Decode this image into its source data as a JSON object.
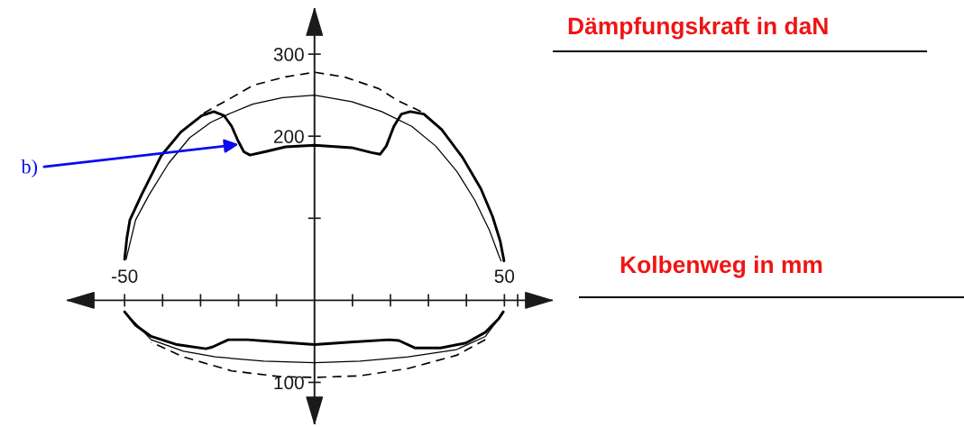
{
  "chart_data": {
    "type": "line",
    "xlabel": "Kolbenweg in mm",
    "ylabel": "Dämpfungskraft in daN",
    "xlim": [
      -65,
      62.5
    ],
    "ylim": [
      -150,
      355
    ],
    "xticks": [
      {
        "value": -50,
        "label": "-50"
      },
      {
        "value": -40,
        "label": null
      },
      {
        "value": -30,
        "label": null
      },
      {
        "value": -20,
        "label": null
      },
      {
        "value": -10,
        "label": null
      },
      {
        "value": 10,
        "label": null
      },
      {
        "value": 20,
        "label": null
      },
      {
        "value": 30,
        "label": null
      },
      {
        "value": 40,
        "label": null
      },
      50,
      {
        "value": 53.5,
        "label": null
      }
    ],
    "yticks": [
      {
        "value": -100,
        "label": "100"
      },
      {
        "value": 100,
        "label": null
      },
      200,
      300
    ],
    "series": [
      {
        "color": "#000000",
        "line_style": "dashed",
        "x": [
          -29.2,
          -21.8,
          -16.2,
          -8,
          0,
          8,
          16.9,
          21.7,
          28
        ],
        "values": [
          228,
          247,
          262,
          272,
          278,
          272,
          258,
          244,
          230
        ]
      },
      {
        "color": "#000000",
        "line_style": "solid",
        "x": [
          -49.6,
          -47.1,
          -43.5,
          -38.4,
          -32.9,
          -27.3,
          -22.6,
          -16.3,
          -8.4,
          0,
          9.8,
          17.7,
          25.6,
          31.9,
          37.5,
          42.2,
          46.1,
          48.5,
          49.1
        ],
        "values": [
          50,
          98,
          129,
          167,
          198,
          217,
          227,
          239,
          247,
          250,
          242,
          230,
          212,
          188,
          157,
          122,
          85,
          55,
          48
        ]
      },
      {
        "color": "#000000",
        "line_style": "solid",
        "x": [
          -50,
          -49.4,
          -48.6,
          -45.5,
          -40.4,
          -35.2,
          -29.7,
          -26.5,
          -23.8,
          -21.8,
          -20.2,
          -18.6,
          -17,
          -13.1,
          -7.6,
          0,
          9.8,
          15,
          17.3,
          18.9,
          20.9,
          22.9,
          25.2,
          28.8,
          33.5,
          39,
          43.8,
          46.9,
          48.9,
          49.9
        ],
        "values": [
          50,
          76,
          98,
          129,
          176,
          205,
          225,
          230,
          225,
          212,
          195,
          181,
          177,
          181,
          187,
          189,
          186,
          180,
          178,
          188,
          212,
          227,
          230,
          227,
          208,
          174,
          136,
          102,
          72,
          48
        ]
      },
      {
        "color": "#000000",
        "line_style": "dashed",
        "x": [
          45,
          37.4,
          24.7,
          12,
          0,
          -9.1,
          -21.8,
          -34.5,
          -43
        ],
        "values": [
          -48,
          -67,
          -83,
          -92,
          -94,
          -93,
          -86,
          -69,
          -51
        ]
      },
      {
        "color": "#000000",
        "line_style": "solid",
        "x": [
          49.7,
          45,
          37.4,
          24.7,
          12,
          0,
          -13.4,
          -26.1,
          -34.5,
          -43,
          -50
        ],
        "values": [
          -15,
          -44,
          -60,
          -69,
          -74,
          -76,
          -74,
          -69,
          -62,
          -48,
          -14
        ]
      },
      {
        "color": "#000000",
        "line_style": "solid",
        "x": [
          49.7,
          48.4,
          45,
          39.9,
          33.2,
          26.4,
          22.2,
          19.6,
          9.5,
          0,
          -9.1,
          -17.6,
          -22.7,
          -26.9,
          -28.6,
          -36.2,
          -43,
          -47.2,
          -50
        ],
        "values": [
          -14,
          -23,
          -39,
          -52,
          -58,
          -58,
          -49,
          -48,
          -51,
          -54,
          -51,
          -48,
          -48,
          -57,
          -59,
          -54,
          -44,
          -30,
          -14
        ]
      }
    ],
    "annotations": [
      {
        "text": "b)",
        "x": -20,
        "y": 190
      }
    ]
  }
}
